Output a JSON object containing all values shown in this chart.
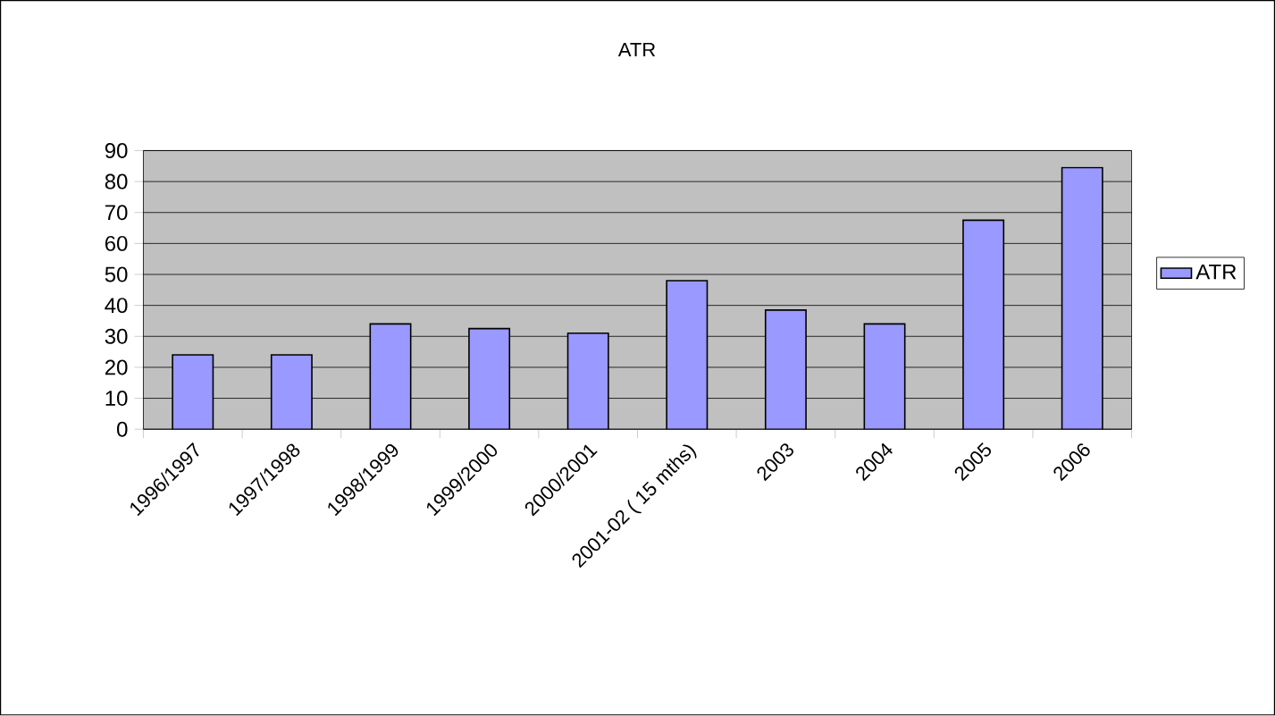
{
  "chart_data": {
    "type": "bar",
    "title": "ATR",
    "categories": [
      "1996/1997",
      "1997/1998",
      "1998/1999",
      "1999/2000",
      "2000/2001",
      "2001-02 ( 15 mths)",
      "2003",
      "2004",
      "2005",
      "2006"
    ],
    "series": [
      {
        "name": "ATR",
        "color": "#9999ff",
        "values": [
          24,
          24,
          34,
          32.5,
          31,
          48,
          38.5,
          34,
          67.5,
          84.5
        ]
      }
    ],
    "ylim": [
      0,
      90
    ],
    "yticks": [
      0,
      10,
      20,
      30,
      40,
      50,
      60,
      70,
      80,
      90
    ],
    "grid": "y",
    "legend": "right"
  }
}
